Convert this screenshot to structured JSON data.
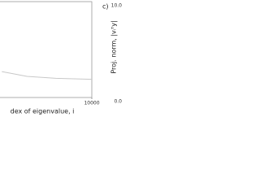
{
  "chart_data": [
    {
      "type": "line",
      "xlabel": "dex of eigenvalue, i",
      "xlim": [
        0,
        10000
      ],
      "xticks": [
        10000
      ],
      "ylim": [
        0,
        1
      ],
      "series": [
        {
          "color": "#c8c8c8",
          "x": [
            7500,
            8200,
            9000,
            10000
          ],
          "values": [
            0.27,
            0.22,
            0.2,
            0.19
          ]
        }
      ]
    },
    {
      "type": "frame",
      "annotation": "c)",
      "ylabel": "Proj. norm, |vᵢᵀy|",
      "ylim": [
        0,
        10
      ],
      "yticks": [
        {
          "value": 0,
          "label": "0.0"
        },
        {
          "value": 10,
          "label": "10.0"
        }
      ]
    }
  ]
}
